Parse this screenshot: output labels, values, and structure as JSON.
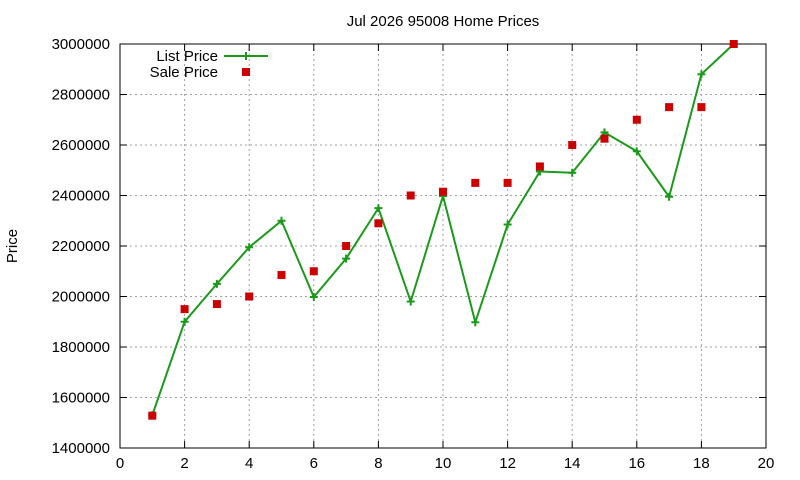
{
  "chart_data": {
    "type": "line",
    "title": "Jul 2026 95008 Home Prices",
    "xlabel": "",
    "ylabel": "Price",
    "xlim": [
      0,
      20
    ],
    "ylim": [
      1400000,
      3000000
    ],
    "x_ticks": [
      0,
      2,
      4,
      6,
      8,
      10,
      12,
      14,
      16,
      18,
      20
    ],
    "y_ticks": [
      1400000,
      1600000,
      1800000,
      2000000,
      2200000,
      2400000,
      2600000,
      2800000,
      3000000
    ],
    "grid": true,
    "legend_position": "top-left",
    "series": [
      {
        "name": "List Price",
        "style": "line+cross",
        "color": "#1a9a1a",
        "points": [
          [
            1,
            1530000
          ],
          [
            2,
            1900000
          ],
          [
            3,
            2050000
          ],
          [
            4,
            2195000
          ],
          [
            5,
            2300000
          ],
          [
            6,
            1998000
          ],
          [
            7,
            2150000
          ],
          [
            8,
            2350000
          ],
          [
            9,
            1980000
          ],
          [
            10,
            2398000
          ],
          [
            11,
            1898000
          ],
          [
            12,
            2285000
          ],
          [
            13,
            2495000
          ],
          [
            14,
            2490000
          ],
          [
            15,
            2650000
          ],
          [
            16,
            2575000
          ],
          [
            17,
            2395000
          ],
          [
            18,
            2880000
          ],
          [
            19,
            3000000
          ]
        ]
      },
      {
        "name": "Sale Price",
        "style": "square",
        "color": "#cc0000",
        "points": [
          [
            1,
            1528000
          ],
          [
            2,
            1950000
          ],
          [
            3,
            1970000
          ],
          [
            4,
            2000000
          ],
          [
            5,
            2085000
          ],
          [
            6,
            2100000
          ],
          [
            7,
            2200000
          ],
          [
            8,
            2290000
          ],
          [
            9,
            2400000
          ],
          [
            10,
            2415000
          ],
          [
            11,
            2450000
          ],
          [
            12,
            2450000
          ],
          [
            13,
            2515000
          ],
          [
            14,
            2600000
          ],
          [
            15,
            2625000
          ],
          [
            16,
            2700000
          ],
          [
            17,
            2750000
          ],
          [
            18,
            2750000
          ],
          [
            19,
            3000000
          ]
        ]
      }
    ]
  }
}
